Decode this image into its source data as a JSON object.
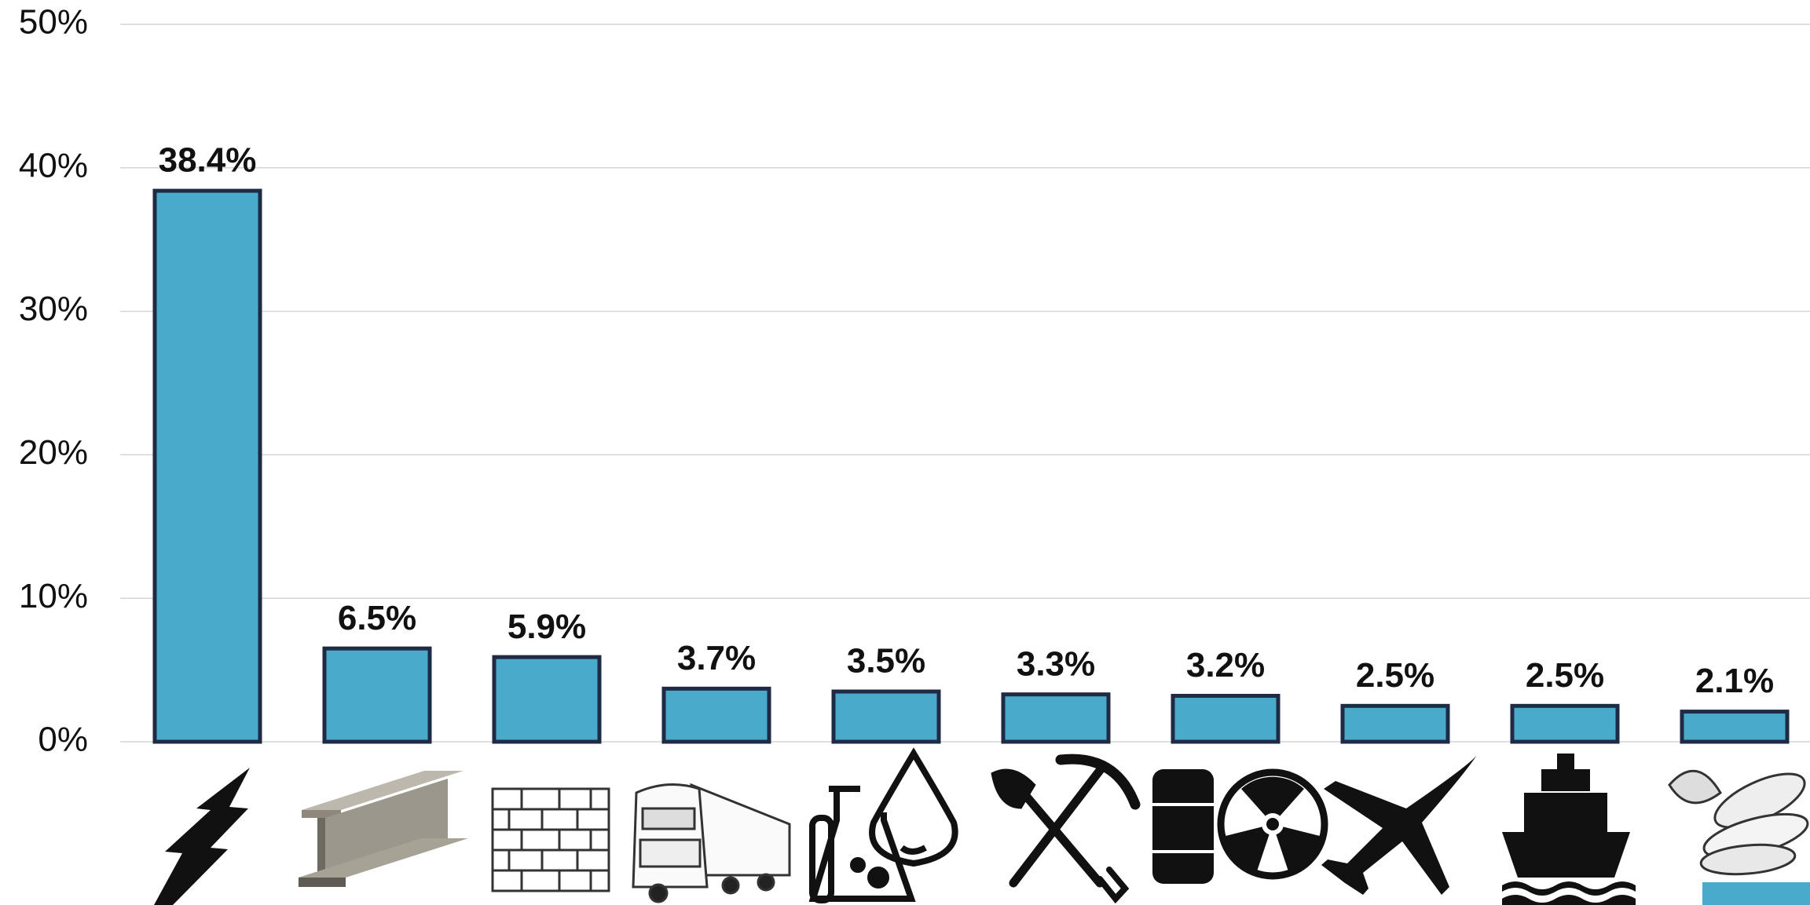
{
  "chart_data": {
    "type": "bar",
    "categories": [
      null,
      null,
      null,
      null,
      null,
      null,
      null,
      null,
      null,
      null
    ],
    "values": [
      38.4,
      6.5,
      5.9,
      3.7,
      3.5,
      3.3,
      3.2,
      2.5,
      2.5,
      2.1
    ],
    "value_labels": [
      "38.4%",
      "6.5%",
      "5.9%",
      "3.7%",
      "3.5%",
      "3.3%",
      "3.2%",
      "2.5%",
      "2.5%",
      "2.1%"
    ],
    "color": "#4aaacb",
    "ylim": [
      0,
      50
    ],
    "yticks": [
      {
        "value": 0,
        "label": "0%"
      },
      {
        "value": 10,
        "label": "10%"
      },
      {
        "value": 20,
        "label": "20%"
      },
      {
        "value": 30,
        "label": "30%"
      },
      {
        "value": 40,
        "label": "40%"
      },
      {
        "value": 50,
        "label": "50%"
      }
    ],
    "grid": true
  }
}
